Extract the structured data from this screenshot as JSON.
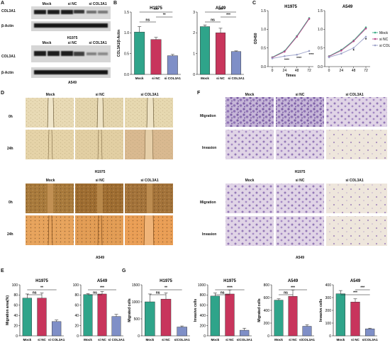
{
  "panels": {
    "A": "A",
    "B": "B",
    "C": "C",
    "D": "D",
    "E": "E",
    "F": "F",
    "G": "G"
  },
  "blots": {
    "lane_labels": [
      "Mock",
      "si NC",
      "si COL3A1"
    ],
    "row_labels": [
      "COL3A1",
      "β-Actin"
    ],
    "cell_lines": [
      "H1975",
      "A549"
    ]
  },
  "wound": {
    "columns": [
      "Mock",
      "si NC",
      "si COL3A1"
    ],
    "rows": [
      "0h",
      "24h"
    ],
    "cell_lines": [
      "H1975",
      "A549"
    ]
  },
  "transwell": {
    "columns": [
      "Mock",
      "si NC",
      "si COL3A1"
    ],
    "rows": [
      "Migration",
      "Invasion"
    ],
    "cell_lines": [
      "H1975",
      "A549"
    ]
  },
  "colors": {
    "mock": "#2fa48a",
    "sinc": "#c8355c",
    "si": "#7f8fc7",
    "line_mock": "#3aaa84",
    "line_sinc": "#b64a8a",
    "line_si": "#9aa0c8"
  },
  "chart_data": [
    {
      "id": "B1",
      "type": "bar",
      "title": "H1975",
      "ylabel": "COL3A1/β-Actin",
      "categories": [
        "Mock",
        "si NC",
        "si COL3A1"
      ],
      "values": [
        1.02,
        0.84,
        0.45
      ],
      "errors": [
        0.13,
        0.05,
        0.03
      ],
      "ylim": [
        0,
        1.5
      ],
      "yticks": [
        "0.0",
        "0.5",
        "1.0",
        "1.5"
      ],
      "sig": [
        "ns",
        "**",
        "***"
      ]
    },
    {
      "id": "B2",
      "type": "bar",
      "title": "A549",
      "ylabel": "",
      "categories": [
        "Mock",
        "si NC",
        "si COL3A1"
      ],
      "values": [
        2.3,
        2.0,
        1.1
      ],
      "errors": [
        0.08,
        0.22,
        0.03
      ],
      "ylim": [
        0,
        3
      ],
      "yticks": [
        "0",
        "1",
        "2",
        "3"
      ],
      "sig": [
        "ns",
        "***",
        "***"
      ]
    },
    {
      "id": "C1",
      "type": "line",
      "title": "H1975",
      "xlabel": "Times",
      "ylabel": "OD450",
      "x": [
        "0",
        "24",
        "48",
        "72"
      ],
      "ylim": [
        0,
        1.5
      ],
      "yticks": [
        "0.0",
        "0.5",
        "1.0",
        "1.5"
      ],
      "series": [
        {
          "name": "Mock",
          "values": [
            0.25,
            0.42,
            0.82,
            1.3
          ]
        },
        {
          "name": "si NC",
          "values": [
            0.24,
            0.4,
            0.8,
            1.28
          ]
        },
        {
          "name": "si COL3A1",
          "values": [
            0.22,
            0.28,
            0.32,
            0.42
          ]
        }
      ],
      "sig": [
        "****",
        "****",
        "****"
      ]
    },
    {
      "id": "C2",
      "type": "line",
      "title": "A549",
      "ylabel": "",
      "x": [
        "0",
        "24",
        "48",
        "72"
      ],
      "ylim": [
        0,
        1.5
      ],
      "yticks": [
        "0.0",
        "0.5",
        "1.0",
        "1.5"
      ],
      "series": [
        {
          "name": "Mock",
          "values": [
            0.28,
            0.45,
            0.7,
            1.05
          ]
        },
        {
          "name": "si NC",
          "values": [
            0.27,
            0.43,
            0.68,
            1.02
          ]
        },
        {
          "name": "si COL3A1",
          "values": [
            0.25,
            0.35,
            0.5,
            0.8
          ]
        }
      ],
      "sig": [
        "*",
        "*"
      ],
      "legend": [
        "Mock",
        "si NC",
        "si COL3A1"
      ]
    },
    {
      "id": "E1",
      "type": "bar",
      "title": "H1975",
      "ylabel": "Migration area(%)",
      "categories": [
        "Mock",
        "si NC",
        "si COL3A1"
      ],
      "values": [
        74,
        74,
        28
      ],
      "errors": [
        8,
        10,
        3
      ],
      "ylim": [
        0,
        100
      ],
      "yticks": [
        "0",
        "20",
        "40",
        "60",
        "80",
        "100"
      ],
      "sig": [
        "ns",
        "**"
      ]
    },
    {
      "id": "E2",
      "type": "bar",
      "title": "A549",
      "ylabel": "",
      "categories": [
        "Mock",
        "si NC",
        "si COL3A1"
      ],
      "values": [
        81,
        82,
        38
      ],
      "errors": [
        2,
        5,
        4
      ],
      "ylim": [
        0,
        100
      ],
      "yticks": [
        "0",
        "20",
        "40",
        "60",
        "80",
        "100"
      ],
      "sig": [
        "ns",
        "***"
      ]
    },
    {
      "id": "G1",
      "type": "bar",
      "title": "H1975",
      "ylabel": "Migrated cells",
      "categories": [
        "Mock",
        "si NC",
        "siCOL3A1"
      ],
      "values": [
        1000,
        1080,
        260
      ],
      "errors": [
        230,
        180,
        30
      ],
      "ylim": [
        0,
        1500
      ],
      "yticks": [
        "0",
        "500",
        "1000",
        "1500"
      ],
      "sig": [
        "ns",
        "**"
      ]
    },
    {
      "id": "G2",
      "type": "bar",
      "title": "H1975",
      "ylabel": "Invasive cells",
      "categories": [
        "Mock",
        "si NC",
        "siCOL3A1"
      ],
      "values": [
        780,
        820,
        110
      ],
      "errors": [
        60,
        80,
        40
      ],
      "ylim": [
        0,
        1000
      ],
      "yticks": [
        "0",
        "200",
        "400",
        "600",
        "800",
        "1000"
      ],
      "sig": [
        "ns",
        "****"
      ]
    },
    {
      "id": "G3",
      "type": "bar",
      "title": "A549",
      "ylabel": "Migrated cells",
      "categories": [
        "Mock",
        "si NC",
        "siCOL3A1"
      ],
      "values": [
        560,
        620,
        150
      ],
      "errors": [
        20,
        100,
        25
      ],
      "ylim": [
        0,
        800
      ],
      "yticks": [
        "0",
        "200",
        "400",
        "600",
        "800"
      ],
      "sig": [
        "ns",
        "***"
      ]
    },
    {
      "id": "G4",
      "type": "bar",
      "title": "A549",
      "ylabel": "Invasive cells",
      "categories": [
        "Mock",
        "si NC",
        "siCOL3A1"
      ],
      "values": [
        330,
        265,
        55
      ],
      "errors": [
        25,
        25,
        5
      ],
      "ylim": [
        0,
        400
      ],
      "yticks": [
        "0",
        "100",
        "200",
        "300",
        "400"
      ],
      "sig": [
        "***",
        "***"
      ]
    }
  ]
}
